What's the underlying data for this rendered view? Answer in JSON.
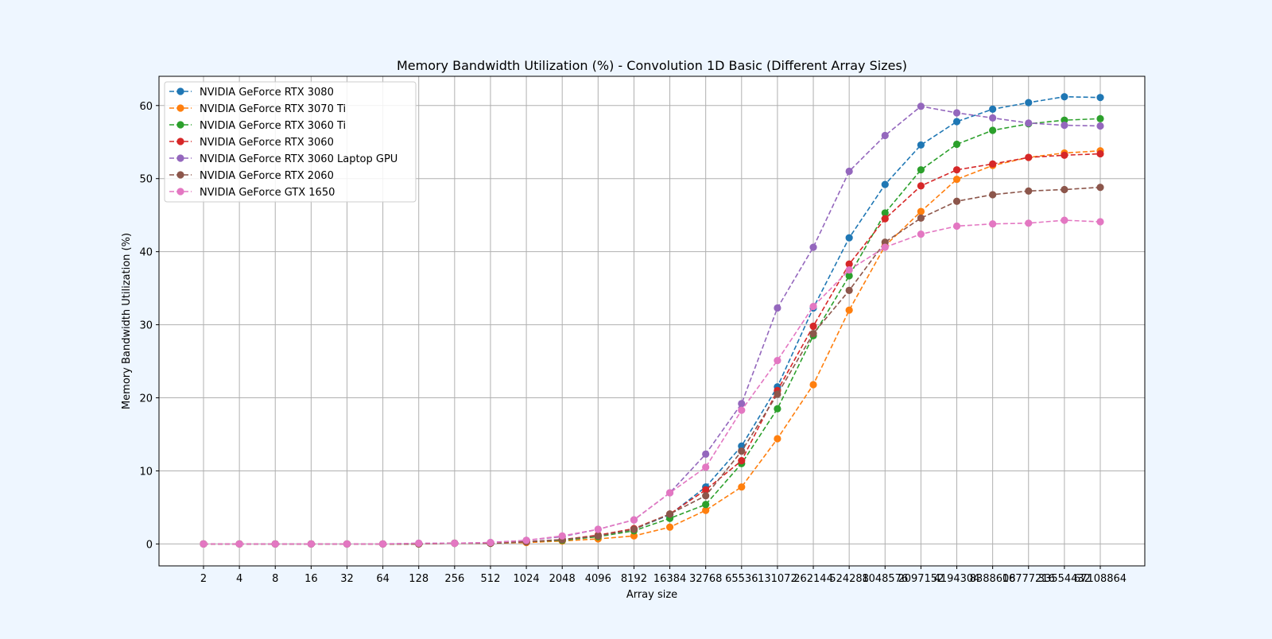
{
  "chart_data": {
    "type": "line",
    "title": "Memory Bandwidth Utilization (%) - Convolution 1D Basic (Different Array Sizes)",
    "xlabel": "Array size",
    "ylabel": "Memory Bandwidth Utilization (%)",
    "x_scale": "categorical",
    "categories": [
      "2",
      "4",
      "8",
      "16",
      "32",
      "64",
      "128",
      "256",
      "512",
      "1024",
      "2048",
      "4096",
      "8192",
      "16384",
      "32768",
      "65536",
      "131072",
      "262144",
      "524288",
      "1048576",
      "2097152",
      "4194304",
      "8388608",
      "16777216",
      "33554432",
      "67108864"
    ],
    "ylim": [
      -3,
      64
    ],
    "yticks": [
      0,
      10,
      20,
      30,
      40,
      50,
      60
    ],
    "grid": true,
    "legend_position": "top-left",
    "line_style": "dashed",
    "marker": "circle",
    "series": [
      {
        "name": "NVIDIA GeForce RTX 3080",
        "color": "#1f77b4",
        "values": [
          0,
          0,
          0,
          0,
          0,
          0,
          0,
          0.1,
          0.1,
          0.3,
          0.5,
          1.1,
          2.0,
          4.0,
          7.8,
          13.4,
          21.5,
          32.3,
          41.9,
          49.2,
          54.6,
          57.8,
          59.5,
          60.4,
          61.2,
          61.1
        ]
      },
      {
        "name": "NVIDIA GeForce RTX 3070 Ti",
        "color": "#ff7f0e",
        "values": [
          0,
          0,
          0,
          0,
          0,
          0,
          0,
          0.1,
          0.1,
          0.2,
          0.4,
          0.7,
          1.1,
          2.3,
          4.6,
          7.8,
          14.4,
          21.8,
          32.0,
          40.8,
          45.5,
          49.9,
          51.8,
          52.9,
          53.5,
          53.8
        ]
      },
      {
        "name": "NVIDIA GeForce RTX 3060 Ti",
        "color": "#2ca02c",
        "values": [
          0,
          0,
          0,
          0,
          0,
          0,
          0,
          0.1,
          0.1,
          0.3,
          0.5,
          1.0,
          1.8,
          3.5,
          5.4,
          11.0,
          18.5,
          28.5,
          36.7,
          45.3,
          51.2,
          54.7,
          56.6,
          57.5,
          58.0,
          58.2
        ]
      },
      {
        "name": "NVIDIA GeForce RTX 3060",
        "color": "#d62728",
        "values": [
          0,
          0,
          0,
          0,
          0,
          0,
          0,
          0.1,
          0.1,
          0.3,
          0.6,
          1.2,
          2.1,
          4.1,
          7.4,
          11.4,
          21.0,
          29.8,
          38.3,
          44.5,
          49.0,
          51.2,
          52.0,
          52.9,
          53.2,
          53.4
        ]
      },
      {
        "name": "NVIDIA GeForce RTX 3060 Laptop GPU",
        "color": "#9467bd",
        "values": [
          0,
          0,
          0,
          0,
          0,
          0,
          0.1,
          0.1,
          0.2,
          0.5,
          1.0,
          2.0,
          3.3,
          7.0,
          12.3,
          19.2,
          32.3,
          40.6,
          51.0,
          55.9,
          59.9,
          59.0,
          58.3,
          57.6,
          57.3,
          57.2
        ]
      },
      {
        "name": "NVIDIA GeForce RTX 2060",
        "color": "#8c564b",
        "values": [
          0,
          0,
          0,
          0,
          0,
          0,
          0,
          0.1,
          0.1,
          0.3,
          0.6,
          1.1,
          2.0,
          4.1,
          6.6,
          12.7,
          20.5,
          28.8,
          34.7,
          41.3,
          44.6,
          46.9,
          47.8,
          48.3,
          48.5,
          48.8
        ]
      },
      {
        "name": "NVIDIA GeForce GTX 1650",
        "color": "#e377c2",
        "values": [
          0,
          0,
          0,
          0,
          0,
          0,
          0.1,
          0.1,
          0.2,
          0.5,
          1.1,
          2.0,
          3.3,
          7.0,
          10.5,
          18.3,
          25.1,
          32.5,
          37.5,
          40.6,
          42.4,
          43.5,
          43.8,
          43.9,
          44.3,
          44.1
        ]
      }
    ]
  }
}
